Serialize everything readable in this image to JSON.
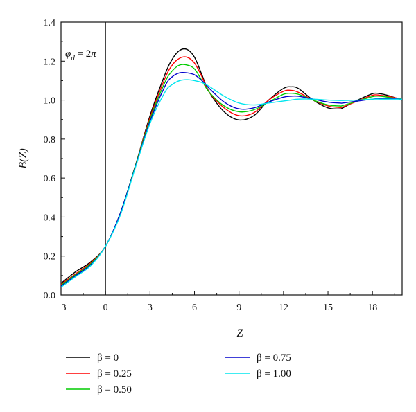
{
  "chart_data": {
    "type": "line",
    "title": "",
    "xlabel": "Z",
    "ylabel": "B(Z)",
    "xlim": [
      -3,
      20
    ],
    "ylim": [
      0.0,
      1.4
    ],
    "x_ticks": [
      -3,
      0,
      3,
      6,
      9,
      12,
      15,
      18
    ],
    "x_tick_labels": [
      "−3",
      "0",
      "3",
      "6",
      "9",
      "12",
      "15",
      "18"
    ],
    "y_ticks": [
      0.0,
      0.2,
      0.4,
      0.6,
      0.8,
      1.0,
      1.2,
      1.4
    ],
    "y_tick_labels": [
      "0.0",
      "0.2",
      "0.4",
      "0.6",
      "0.8",
      "1.0",
      "1.2",
      "1.4"
    ],
    "grid": false,
    "legend_position": "bottom",
    "annotation": "φd = 2π",
    "vertical_line_x": 0,
    "x": [
      -3,
      -2,
      -1,
      0,
      1,
      2,
      3,
      4,
      4.5,
      5,
      5.5,
      6,
      6.5,
      7,
      8,
      9,
      10,
      11,
      12,
      12.5,
      13,
      14,
      15,
      15.8,
      16,
      17,
      18,
      18.5,
      19,
      20
    ],
    "series": [
      {
        "name": "β = 0",
        "color": "#000000",
        "values": [
          0.06,
          0.12,
          0.17,
          0.25,
          0.42,
          0.66,
          0.92,
          1.13,
          1.21,
          1.255,
          1.26,
          1.22,
          1.13,
          1.04,
          0.94,
          0.898,
          0.92,
          1.0,
          1.06,
          1.068,
          1.06,
          1.0,
          0.96,
          0.955,
          0.96,
          1.0,
          1.033,
          1.033,
          1.025,
          1.0
        ]
      },
      {
        "name": "β = 0.25",
        "color": "#ff0000",
        "values": [
          0.055,
          0.11,
          0.165,
          0.25,
          0.42,
          0.66,
          0.91,
          1.11,
          1.18,
          1.215,
          1.22,
          1.19,
          1.12,
          1.04,
          0.96,
          0.92,
          0.935,
          1.0,
          1.045,
          1.05,
          1.04,
          1.0,
          0.97,
          0.962,
          0.965,
          0.995,
          1.025,
          1.025,
          1.02,
          1.005
        ]
      },
      {
        "name": "β = 0.50",
        "color": "#00cc00",
        "values": [
          0.05,
          0.105,
          0.16,
          0.25,
          0.42,
          0.66,
          0.9,
          1.09,
          1.15,
          1.18,
          1.18,
          1.16,
          1.1,
          1.04,
          0.97,
          0.94,
          0.95,
          0.99,
          1.03,
          1.035,
          1.03,
          1.0,
          0.975,
          0.97,
          0.972,
          0.995,
          1.018,
          1.02,
          1.015,
          1.005
        ]
      },
      {
        "name": "β = 0.75",
        "color": "#0000cc",
        "values": [
          0.045,
          0.1,
          0.155,
          0.25,
          0.42,
          0.655,
          0.89,
          1.07,
          1.12,
          1.14,
          1.14,
          1.13,
          1.1,
          1.06,
          0.99,
          0.955,
          0.96,
          0.99,
          1.015,
          1.02,
          1.02,
          1.005,
          0.99,
          0.985,
          0.985,
          0.995,
          1.005,
          1.008,
          1.008,
          1.005
        ]
      },
      {
        "name": "β = 1.00",
        "color": "#00e5ee",
        "values": [
          0.04,
          0.095,
          0.15,
          0.25,
          0.41,
          0.65,
          0.88,
          1.04,
          1.08,
          1.1,
          1.105,
          1.1,
          1.09,
          1.07,
          1.02,
          0.985,
          0.975,
          0.985,
          0.995,
          1.0,
          1.005,
          1.005,
          1.0,
          0.998,
          0.998,
          1.0,
          1.005,
          1.005,
          1.005,
          1.005
        ]
      }
    ]
  }
}
